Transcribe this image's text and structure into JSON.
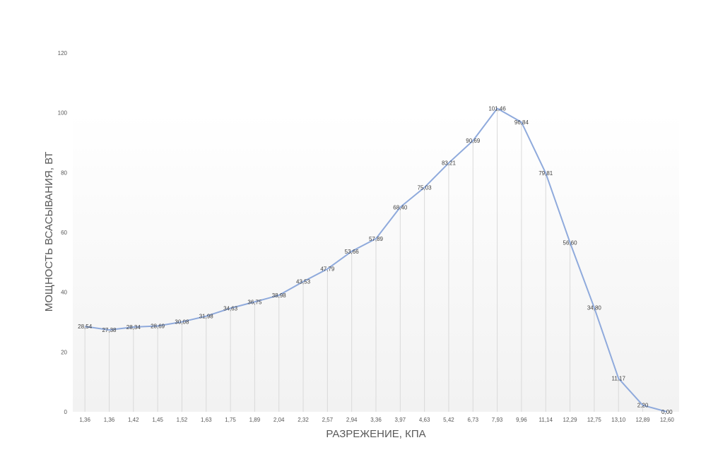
{
  "chart_data": {
    "type": "line",
    "title": "",
    "xlabel": "РАЗРЕЖЕНИЕ, КПА",
    "ylabel": "МОЩНОСТЬ ВСАСЫВАНИЯ, ВТ",
    "categories": [
      "1,36",
      "1,36",
      "1,42",
      "1,45",
      "1,52",
      "1,63",
      "1,75",
      "1,89",
      "2,04",
      "2,32",
      "2,57",
      "2,94",
      "3,36",
      "3,97",
      "4,63",
      "5,42",
      "6,73",
      "7,93",
      "9,96",
      "11,14",
      "12,29",
      "12,75",
      "13,10",
      "12,89",
      "12,60"
    ],
    "series": [
      {
        "values": [
          28.54,
          27.38,
          28.34,
          28.69,
          30.08,
          31.98,
          34.63,
          36.75,
          38.98,
          43.53,
          47.79,
          53.66,
          57.89,
          68.4,
          75.03,
          83.21,
          90.69,
          101.46,
          96.84,
          79.81,
          56.6,
          34.8,
          11.17,
          2.2,
          0.0
        ],
        "value_labels": [
          "28,54",
          "27,38",
          "28,34",
          "28,69",
          "30,08",
          "31,98",
          "34,63",
          "36,75",
          "38,98",
          "43,53",
          "47,79",
          "53,66",
          "57,89",
          "68,40",
          "75,03",
          "83,21",
          "90,69",
          "101,46",
          "96,84",
          "79,81",
          "56,60",
          "34,80",
          "11,17",
          "2,20",
          "0,00"
        ],
        "color": "#8faadc"
      }
    ],
    "y_ticks": [
      "0",
      "20",
      "40",
      "60",
      "80",
      "100",
      "120"
    ],
    "ylim": [
      0,
      120
    ],
    "grid": false,
    "drop_lines": true,
    "legend": "none",
    "colors": {
      "line": "#8faadc",
      "drop_line": "#d9d9d9",
      "plot_background_top": "#ffffff",
      "plot_background_bottom": "#f2f2f2"
    }
  }
}
